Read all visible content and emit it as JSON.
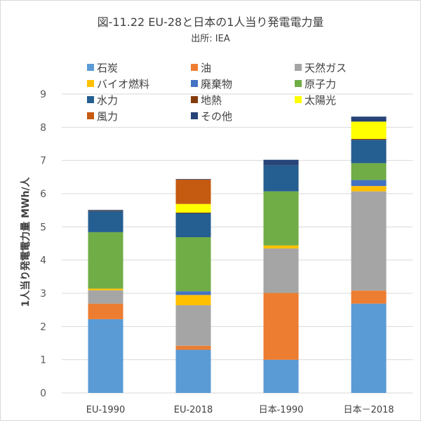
{
  "chart_data": {
    "type": "bar",
    "stacked": true,
    "title": "図-11.22  EU-28と日本の1人当り発電電力量",
    "subtitle": "出所: IEA",
    "xlabel": "",
    "ylabel": "1人当り発電電力量  MWh/人",
    "ylim": [
      0,
      9
    ],
    "yticks": [
      "0",
      "1",
      "2",
      "3",
      "4",
      "5",
      "6",
      "7",
      "8",
      "9"
    ],
    "grid": true,
    "legend_position": "top",
    "categories": [
      "EU-1990",
      "EU-2018",
      "日本-1990",
      "日本－2018"
    ],
    "series": [
      {
        "name": "石炭",
        "color": "#5b9bd5",
        "values": [
          2.22,
          1.3,
          1.0,
          2.69
        ]
      },
      {
        "name": "油",
        "color": "#ed7d31",
        "values": [
          0.47,
          0.12,
          2.01,
          0.39
        ]
      },
      {
        "name": "天然ガス",
        "color": "#a5a5a5",
        "values": [
          0.4,
          1.22,
          1.34,
          2.99
        ]
      },
      {
        "name": "バイオ燃料",
        "color": "#ffc000",
        "values": [
          0.05,
          0.31,
          0.09,
          0.16
        ]
      },
      {
        "name": "廃棄物",
        "color": "#4472c4",
        "values": [
          0.0,
          0.11,
          0.0,
          0.18
        ]
      },
      {
        "name": "原子力",
        "color": "#70ad47",
        "values": [
          1.7,
          1.63,
          1.63,
          0.51
        ]
      },
      {
        "name": "水力",
        "color": "#255e91",
        "values": [
          0.64,
          0.73,
          0.78,
          0.7
        ]
      },
      {
        "name": "地熱",
        "color": "#843c0c",
        "values": [
          0.02,
          0.01,
          0.0,
          0.03
        ]
      },
      {
        "name": "太陽光",
        "color": "#ffff00",
        "values": [
          0.0,
          0.26,
          0.0,
          0.52
        ]
      },
      {
        "name": "風力",
        "color": "#c55a11",
        "values": [
          0.0,
          0.74,
          0.0,
          0.0
        ]
      },
      {
        "name": "その他",
        "color": "#264478",
        "values": [
          0.01,
          0.01,
          0.17,
          0.15
        ]
      }
    ]
  }
}
